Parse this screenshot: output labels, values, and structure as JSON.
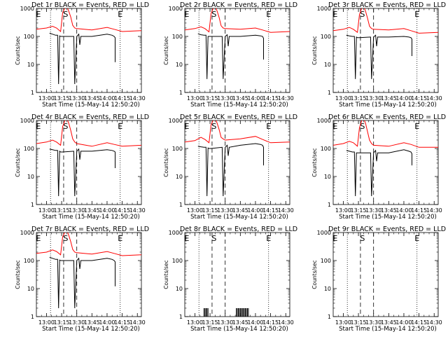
{
  "figure": {
    "xlabel": "Start Time (15-May-14 12:50:20)",
    "ylabel": "Counts/sec",
    "x_tick_labels": [
      "13:00",
      "13:15",
      "13:30",
      "13:45",
      "14:00",
      "14:15",
      "14:30"
    ],
    "y_tick_labels": [
      "1",
      "10",
      "100",
      "1000"
    ],
    "marker_labels": {
      "E": "E",
      "S": "S"
    }
  },
  "colors": {
    "events": "#000000",
    "lld": "#ff0000",
    "axes": "#000000",
    "background": "#ffffff"
  },
  "chart_data": [
    {
      "type": "line",
      "title": "Det 1r BLACK = Events, RED = LLD",
      "xlabel": "Start Time (15-May-14 12:50:20)",
      "ylabel": "Counts/sec",
      "xlim": [
        "12:50",
        "14:34"
      ],
      "ylim": [
        1,
        1000
      ],
      "yscale": "log",
      "markers": {
        "E": [
          "12:52",
          "14:13"
        ],
        "S": [
          "13:19"
        ],
        "dotted": [
          "13:04",
          "14:13"
        ],
        "dashed": [
          "13:17",
          "13:30"
        ]
      },
      "series": [
        {
          "name": "LLD",
          "color": "#ff0000",
          "x": [
            "12:50",
            "13:00",
            "13:06",
            "13:10",
            "13:14",
            "13:16",
            "13:19",
            "13:20",
            "13:22",
            "13:24",
            "13:26",
            "13:28",
            "13:30",
            "13:45",
            "14:00",
            "14:07",
            "14:15",
            "14:34"
          ],
          "y": [
            180,
            200,
            230,
            200,
            150,
            700,
            1200,
            1200,
            800,
            500,
            250,
            200,
            190,
            170,
            210,
            180,
            150,
            160
          ]
        },
        {
          "name": "Events",
          "color": "#000000",
          "x": [
            "13:03",
            "13:06",
            "13:09",
            "13:11",
            "13:12",
            "13:13",
            "13:14",
            "13:16",
            "13:27",
            "13:28",
            "13:30",
            "13:32",
            "13:33",
            "13:34",
            "13:45",
            "14:00",
            "14:05",
            "14:07",
            "14:08",
            "14:08"
          ],
          "y": [
            130,
            120,
            110,
            110,
            2,
            105,
            100,
            100,
            100,
            2,
            100,
            120,
            50,
            100,
            100,
            120,
            110,
            100,
            90,
            12
          ]
        }
      ]
    },
    {
      "type": "line",
      "title": "Det 2r BLACK = Events, RED = LLD",
      "xlabel": "Start Time (15-May-14 12:50:20)",
      "ylabel": "Counts/sec",
      "xlim": [
        "12:50",
        "14:34"
      ],
      "ylim": [
        1,
        1000
      ],
      "yscale": "log",
      "markers": {
        "E": [
          "12:52",
          "14:13"
        ],
        "S": [
          "13:19"
        ],
        "dotted": [
          "13:04",
          "14:13"
        ],
        "dashed": [
          "13:17",
          "13:30"
        ]
      },
      "series": [
        {
          "name": "LLD",
          "color": "#ff0000",
          "x": [
            "12:50",
            "13:00",
            "13:06",
            "13:10",
            "13:14",
            "13:16",
            "13:19",
            "13:20",
            "13:22",
            "13:24",
            "13:26",
            "13:28",
            "13:30",
            "13:45",
            "14:00",
            "14:07",
            "14:15",
            "14:34"
          ],
          "y": [
            170,
            190,
            220,
            190,
            145,
            650,
            1200,
            1200,
            800,
            480,
            240,
            200,
            190,
            180,
            200,
            170,
            140,
            150
          ]
        },
        {
          "name": "Events",
          "color": "#000000",
          "x": [
            "13:03",
            "13:06",
            "13:09",
            "13:11",
            "13:12",
            "13:13",
            "13:14",
            "13:16",
            "13:27",
            "13:28",
            "13:30",
            "13:32",
            "13:33",
            "13:34",
            "13:45",
            "14:00",
            "14:05",
            "14:07",
            "14:08",
            "14:08"
          ],
          "y": [
            125,
            115,
            110,
            110,
            3,
            100,
            100,
            100,
            100,
            3,
            100,
            115,
            45,
            100,
            100,
            110,
            105,
            100,
            85,
            15
          ]
        }
      ]
    },
    {
      "type": "line",
      "title": "Det 3r BLACK = Events, RED = LLD",
      "xlabel": "Start Time (15-May-14 12:50:20)",
      "ylabel": "Counts/sec",
      "xlim": [
        "12:50",
        "14:34"
      ],
      "ylim": [
        1,
        1000
      ],
      "yscale": "log",
      "markers": {
        "E": [
          "12:52",
          "14:13"
        ],
        "S": [
          "13:19"
        ],
        "dotted": [
          "13:04",
          "14:13"
        ],
        "dashed": [
          "13:17",
          "13:30"
        ]
      },
      "series": [
        {
          "name": "LLD",
          "color": "#ff0000",
          "x": [
            "12:50",
            "13:00",
            "13:06",
            "13:10",
            "13:14",
            "13:16",
            "13:19",
            "13:20",
            "13:22",
            "13:24",
            "13:26",
            "13:28",
            "13:30",
            "13:45",
            "14:00",
            "14:07",
            "14:15",
            "14:34"
          ],
          "y": [
            160,
            180,
            210,
            180,
            140,
            600,
            1200,
            1200,
            800,
            450,
            230,
            190,
            180,
            170,
            190,
            160,
            130,
            140
          ]
        },
        {
          "name": "Events",
          "color": "#000000",
          "x": [
            "13:03",
            "13:06",
            "13:09",
            "13:11",
            "13:12",
            "13:13",
            "13:14",
            "13:16",
            "13:27",
            "13:28",
            "13:30",
            "13:32",
            "13:33",
            "13:34",
            "13:45",
            "14:00",
            "14:05",
            "14:07",
            "14:08",
            "14:08"
          ],
          "y": [
            110,
            105,
            100,
            100,
            3,
            95,
            90,
            90,
            95,
            3,
            95,
            110,
            45,
            95,
            95,
            100,
            95,
            90,
            80,
            20
          ]
        }
      ]
    },
    {
      "type": "line",
      "title": "Det 4r BLACK = Events, RED = LLD",
      "xlabel": "Start Time (15-May-14 12:50:20)",
      "ylabel": "Counts/sec",
      "xlim": [
        "12:50",
        "14:34"
      ],
      "ylim": [
        1,
        1000
      ],
      "yscale": "log",
      "markers": {
        "E": [
          "12:52",
          "14:13"
        ],
        "S": [
          "13:19"
        ],
        "dotted": [
          "13:04",
          "14:13"
        ],
        "dashed": [
          "13:17",
          "13:30"
        ]
      },
      "series": [
        {
          "name": "LLD",
          "color": "#ff0000",
          "x": [
            "12:50",
            "13:00",
            "13:06",
            "13:10",
            "13:14",
            "13:16",
            "13:19",
            "13:20",
            "13:22",
            "13:24",
            "13:26",
            "13:28",
            "13:30",
            "13:45",
            "14:00",
            "14:07",
            "14:15",
            "14:34"
          ],
          "y": [
            150,
            170,
            200,
            170,
            130,
            600,
            1200,
            1200,
            800,
            450,
            220,
            170,
            150,
            120,
            160,
            140,
            120,
            130
          ]
        },
        {
          "name": "Events",
          "color": "#000000",
          "x": [
            "13:03",
            "13:06",
            "13:09",
            "13:11",
            "13:12",
            "13:13",
            "13:14",
            "13:16",
            "13:27",
            "13:28",
            "13:30",
            "13:32",
            "13:33",
            "13:34",
            "13:45",
            "14:00",
            "14:05",
            "14:07",
            "14:08",
            "14:08"
          ],
          "y": [
            95,
            90,
            85,
            85,
            2,
            80,
            75,
            75,
            80,
            2,
            80,
            95,
            40,
            80,
            80,
            90,
            85,
            80,
            75,
            20
          ]
        }
      ]
    },
    {
      "type": "line",
      "title": "Det 5r BLACK = Events, RED = LLD",
      "xlabel": "Start Time (15-May-14 12:50:20)",
      "ylabel": "Counts/sec",
      "xlim": [
        "12:50",
        "14:34"
      ],
      "ylim": [
        1,
        1000
      ],
      "yscale": "log",
      "markers": {
        "E": [
          "12:52",
          "14:13"
        ],
        "S": [
          "13:19"
        ],
        "dotted": [
          "13:04",
          "14:13"
        ],
        "dashed": [
          "13:17",
          "13:30"
        ]
      },
      "series": [
        {
          "name": "LLD",
          "color": "#ff0000",
          "x": [
            "12:50",
            "13:00",
            "13:06",
            "13:10",
            "13:14",
            "13:16",
            "13:19",
            "13:20",
            "13:22",
            "13:24",
            "13:26",
            "13:28",
            "13:30",
            "13:45",
            "14:00",
            "14:07",
            "14:15",
            "14:34"
          ],
          "y": [
            170,
            190,
            250,
            210,
            160,
            700,
            1200,
            1200,
            800,
            480,
            250,
            220,
            200,
            220,
            270,
            210,
            160,
            170
          ]
        },
        {
          "name": "Events",
          "color": "#000000",
          "x": [
            "13:03",
            "13:06",
            "13:09",
            "13:11",
            "13:12",
            "13:13",
            "13:14",
            "13:16",
            "13:27",
            "13:28",
            "13:30",
            "13:32",
            "13:33",
            "13:34",
            "13:45",
            "14:00",
            "14:05",
            "14:07",
            "14:08",
            "14:08"
          ],
          "y": [
            120,
            115,
            110,
            110,
            2,
            105,
            100,
            100,
            110,
            2,
            110,
            130,
            55,
            110,
            130,
            150,
            140,
            130,
            110,
            25
          ]
        }
      ]
    },
    {
      "type": "line",
      "title": "Det 6r BLACK = Events, RED = LLD",
      "xlabel": "Start Time (15-May-14 12:50:20)",
      "ylabel": "Counts/sec",
      "xlim": [
        "12:50",
        "14:34"
      ],
      "ylim": [
        1,
        1000
      ],
      "yscale": "log",
      "markers": {
        "E": [
          "12:52",
          "14:13"
        ],
        "S": [
          "13:19"
        ],
        "dotted": [
          "13:04",
          "14:13"
        ],
        "dashed": [
          "13:17",
          "13:30"
        ]
      },
      "series": [
        {
          "name": "LLD",
          "color": "#ff0000",
          "x": [
            "12:50",
            "13:00",
            "13:06",
            "13:10",
            "13:14",
            "13:16",
            "13:19",
            "13:20",
            "13:22",
            "13:24",
            "13:26",
            "13:28",
            "13:30",
            "13:45",
            "14:00",
            "14:07",
            "14:15",
            "14:34"
          ],
          "y": [
            130,
            150,
            180,
            160,
            120,
            550,
            1200,
            1200,
            800,
            400,
            200,
            150,
            130,
            120,
            160,
            140,
            110,
            110
          ]
        },
        {
          "name": "Events",
          "color": "#000000",
          "x": [
            "13:03",
            "13:06",
            "13:09",
            "13:11",
            "13:12",
            "13:13",
            "13:14",
            "13:16",
            "13:27",
            "13:28",
            "13:30",
            "13:32",
            "13:33",
            "13:34",
            "13:45",
            "14:00",
            "14:05",
            "14:07",
            "14:08",
            "14:08"
          ],
          "y": [
            85,
            80,
            75,
            75,
            2,
            70,
            70,
            70,
            70,
            2,
            70,
            85,
            35,
            70,
            70,
            90,
            80,
            75,
            65,
            25
          ]
        }
      ]
    },
    {
      "type": "line",
      "title": "Det 7r BLACK = Events, RED = LLD",
      "xlabel": "Start Time (15-May-14 12:50:20)",
      "ylabel": "Counts/sec",
      "xlim": [
        "12:50",
        "14:34"
      ],
      "ylim": [
        1,
        1000
      ],
      "yscale": "log",
      "markers": {
        "E": [
          "12:52",
          "14:13"
        ],
        "S": [
          "13:19"
        ],
        "dotted": [
          "13:04",
          "14:13"
        ],
        "dashed": [
          "13:17",
          "13:30"
        ]
      },
      "series": [
        {
          "name": "LLD",
          "color": "#ff0000",
          "x": [
            "12:50",
            "13:00",
            "13:06",
            "13:10",
            "13:14",
            "13:16",
            "13:19",
            "13:20",
            "13:22",
            "13:24",
            "13:26",
            "13:28",
            "13:30",
            "13:45",
            "14:00",
            "14:07",
            "14:15",
            "14:34"
          ],
          "y": [
            180,
            200,
            240,
            210,
            160,
            700,
            1200,
            1200,
            800,
            480,
            250,
            200,
            190,
            170,
            210,
            180,
            150,
            160
          ]
        },
        {
          "name": "Events",
          "color": "#000000",
          "x": [
            "13:03",
            "13:06",
            "13:09",
            "13:11",
            "13:12",
            "13:13",
            "13:14",
            "13:16",
            "13:27",
            "13:28",
            "13:30",
            "13:32",
            "13:33",
            "13:34",
            "13:45",
            "14:00",
            "14:05",
            "14:07",
            "14:08",
            "14:08"
          ],
          "y": [
            130,
            120,
            110,
            110,
            2,
            105,
            100,
            100,
            100,
            2,
            100,
            120,
            50,
            100,
            100,
            120,
            110,
            100,
            90,
            12
          ]
        }
      ]
    },
    {
      "type": "line",
      "title": "Det 8r BLACK = Events, RED = LLD",
      "xlabel": "Start Time (15-May-14 12:50:20)",
      "ylabel": "Counts/sec",
      "xlim": [
        "12:50",
        "14:34"
      ],
      "ylim": [
        1,
        1000
      ],
      "yscale": "log",
      "markers": {
        "E": [
          "12:52",
          "14:13"
        ],
        "S": [
          "13:19"
        ],
        "dotted": [
          "13:04",
          "14:13"
        ],
        "dashed": [
          "13:17",
          "13:30"
        ]
      },
      "spikes": {
        "color": "#000000",
        "x": [
          "13:09",
          "13:10",
          "13:11",
          "13:12",
          "13:13",
          "13:41",
          "13:42",
          "13:43",
          "13:44",
          "13:45",
          "13:46",
          "13:47",
          "13:48",
          "13:49",
          "13:50",
          "13:51",
          "13:52",
          "13:53"
        ],
        "y": [
          2,
          2,
          2,
          2,
          2,
          2,
          2,
          2,
          2,
          2,
          2,
          2,
          2,
          2,
          2,
          2,
          2,
          2
        ]
      },
      "series": []
    },
    {
      "type": "line",
      "title": "Det 9r BLACK = Events, RED = LLD",
      "xlabel": "Start Time (15-May-14 12:50:20)",
      "ylabel": "Counts/sec",
      "xlim": [
        "12:50",
        "14:34"
      ],
      "ylim": [
        1,
        1000
      ],
      "yscale": "log",
      "markers": {
        "E": [
          "12:52",
          "14:13"
        ],
        "S": [
          "13:19"
        ],
        "dotted": [
          "13:04",
          "14:13"
        ],
        "dashed": [
          "13:17",
          "13:30"
        ]
      },
      "series": []
    }
  ]
}
